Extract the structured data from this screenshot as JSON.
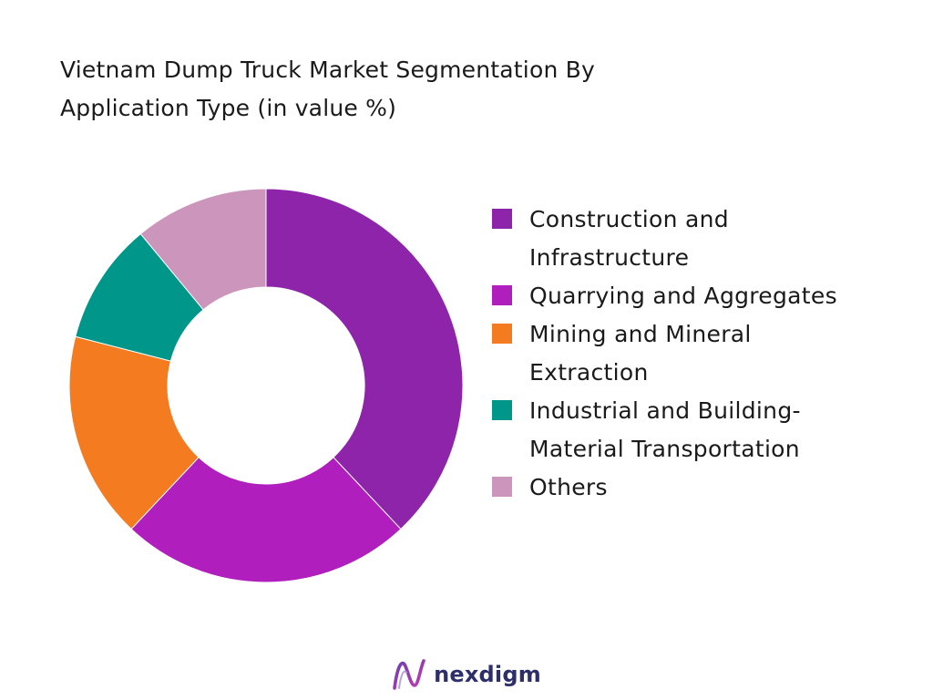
{
  "title_lines": [
    "Vietnam Dump Truck Market Segmentation By",
    "Application Type (in value %)"
  ],
  "chart_data": {
    "type": "pie",
    "title": "Vietnam Dump Truck Market Segmentation By Application Type (in value %)",
    "categories": [
      "Construction and Infrastructure",
      "Quarrying and Aggregates",
      "Mining and Mineral Extraction",
      "Industrial and Building-Material Transportation",
      "Others"
    ],
    "values": [
      38,
      24,
      17,
      10,
      11
    ],
    "colors": [
      "#8e24aa",
      "#b01fbd",
      "#f47b20",
      "#00968a",
      "#cc95bb"
    ],
    "hole": true,
    "legend_position": "right"
  },
  "legend": [
    {
      "lines": [
        "Construction and",
        "Infrastructure"
      ],
      "color": "#8e24aa"
    },
    {
      "lines": [
        "Quarrying and Aggregates"
      ],
      "color": "#b01fbd"
    },
    {
      "lines": [
        "Mining and Mineral",
        "Extraction"
      ],
      "color": "#f47b20"
    },
    {
      "lines": [
        "Industrial and Building-",
        "Material Transportation"
      ],
      "color": "#00968a"
    },
    {
      "lines": [
        "Others"
      ],
      "color": "#cc95bb"
    }
  ],
  "footer": {
    "logo_text": "nexdigm",
    "logo_icon": "nexdigm-logo-icon"
  }
}
